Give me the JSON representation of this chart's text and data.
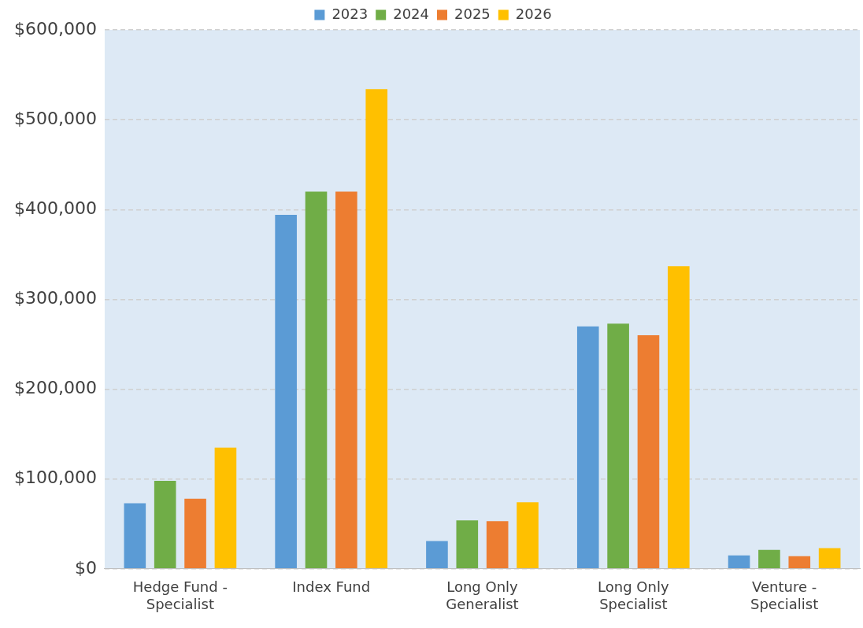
{
  "chart_data": {
    "type": "bar",
    "categories": [
      "Hedge Fund - Specialist",
      "Index Fund",
      "Long Only Generalist",
      "Long Only Specialist",
      "Venture - Specialist"
    ],
    "series": [
      {
        "name": "2023",
        "color": "#5b9bd5",
        "values": [
          73000,
          394000,
          31000,
          270000,
          15000
        ]
      },
      {
        "name": "2024",
        "color": "#70ad47",
        "values": [
          98000,
          420000,
          54000,
          273000,
          21000
        ]
      },
      {
        "name": "2025",
        "color": "#ed7d31",
        "values": [
          78000,
          420000,
          53000,
          260000,
          14000
        ]
      },
      {
        "name": "2026",
        "color": "#ffc000",
        "values": [
          135000,
          534000,
          74000,
          337000,
          23000
        ]
      }
    ],
    "ylim": [
      0,
      600000
    ],
    "yticks": [
      {
        "value": 0,
        "label": "$0"
      },
      {
        "value": 100000,
        "label": "$100,000"
      },
      {
        "value": 200000,
        "label": "$200,000"
      },
      {
        "value": 300000,
        "label": "$300,000"
      },
      {
        "value": 400000,
        "label": "$400,000"
      },
      {
        "value": 500000,
        "label": "$500,000"
      },
      {
        "value": 600000,
        "label": "$600,000"
      }
    ],
    "grid": "y",
    "legend": "top"
  }
}
